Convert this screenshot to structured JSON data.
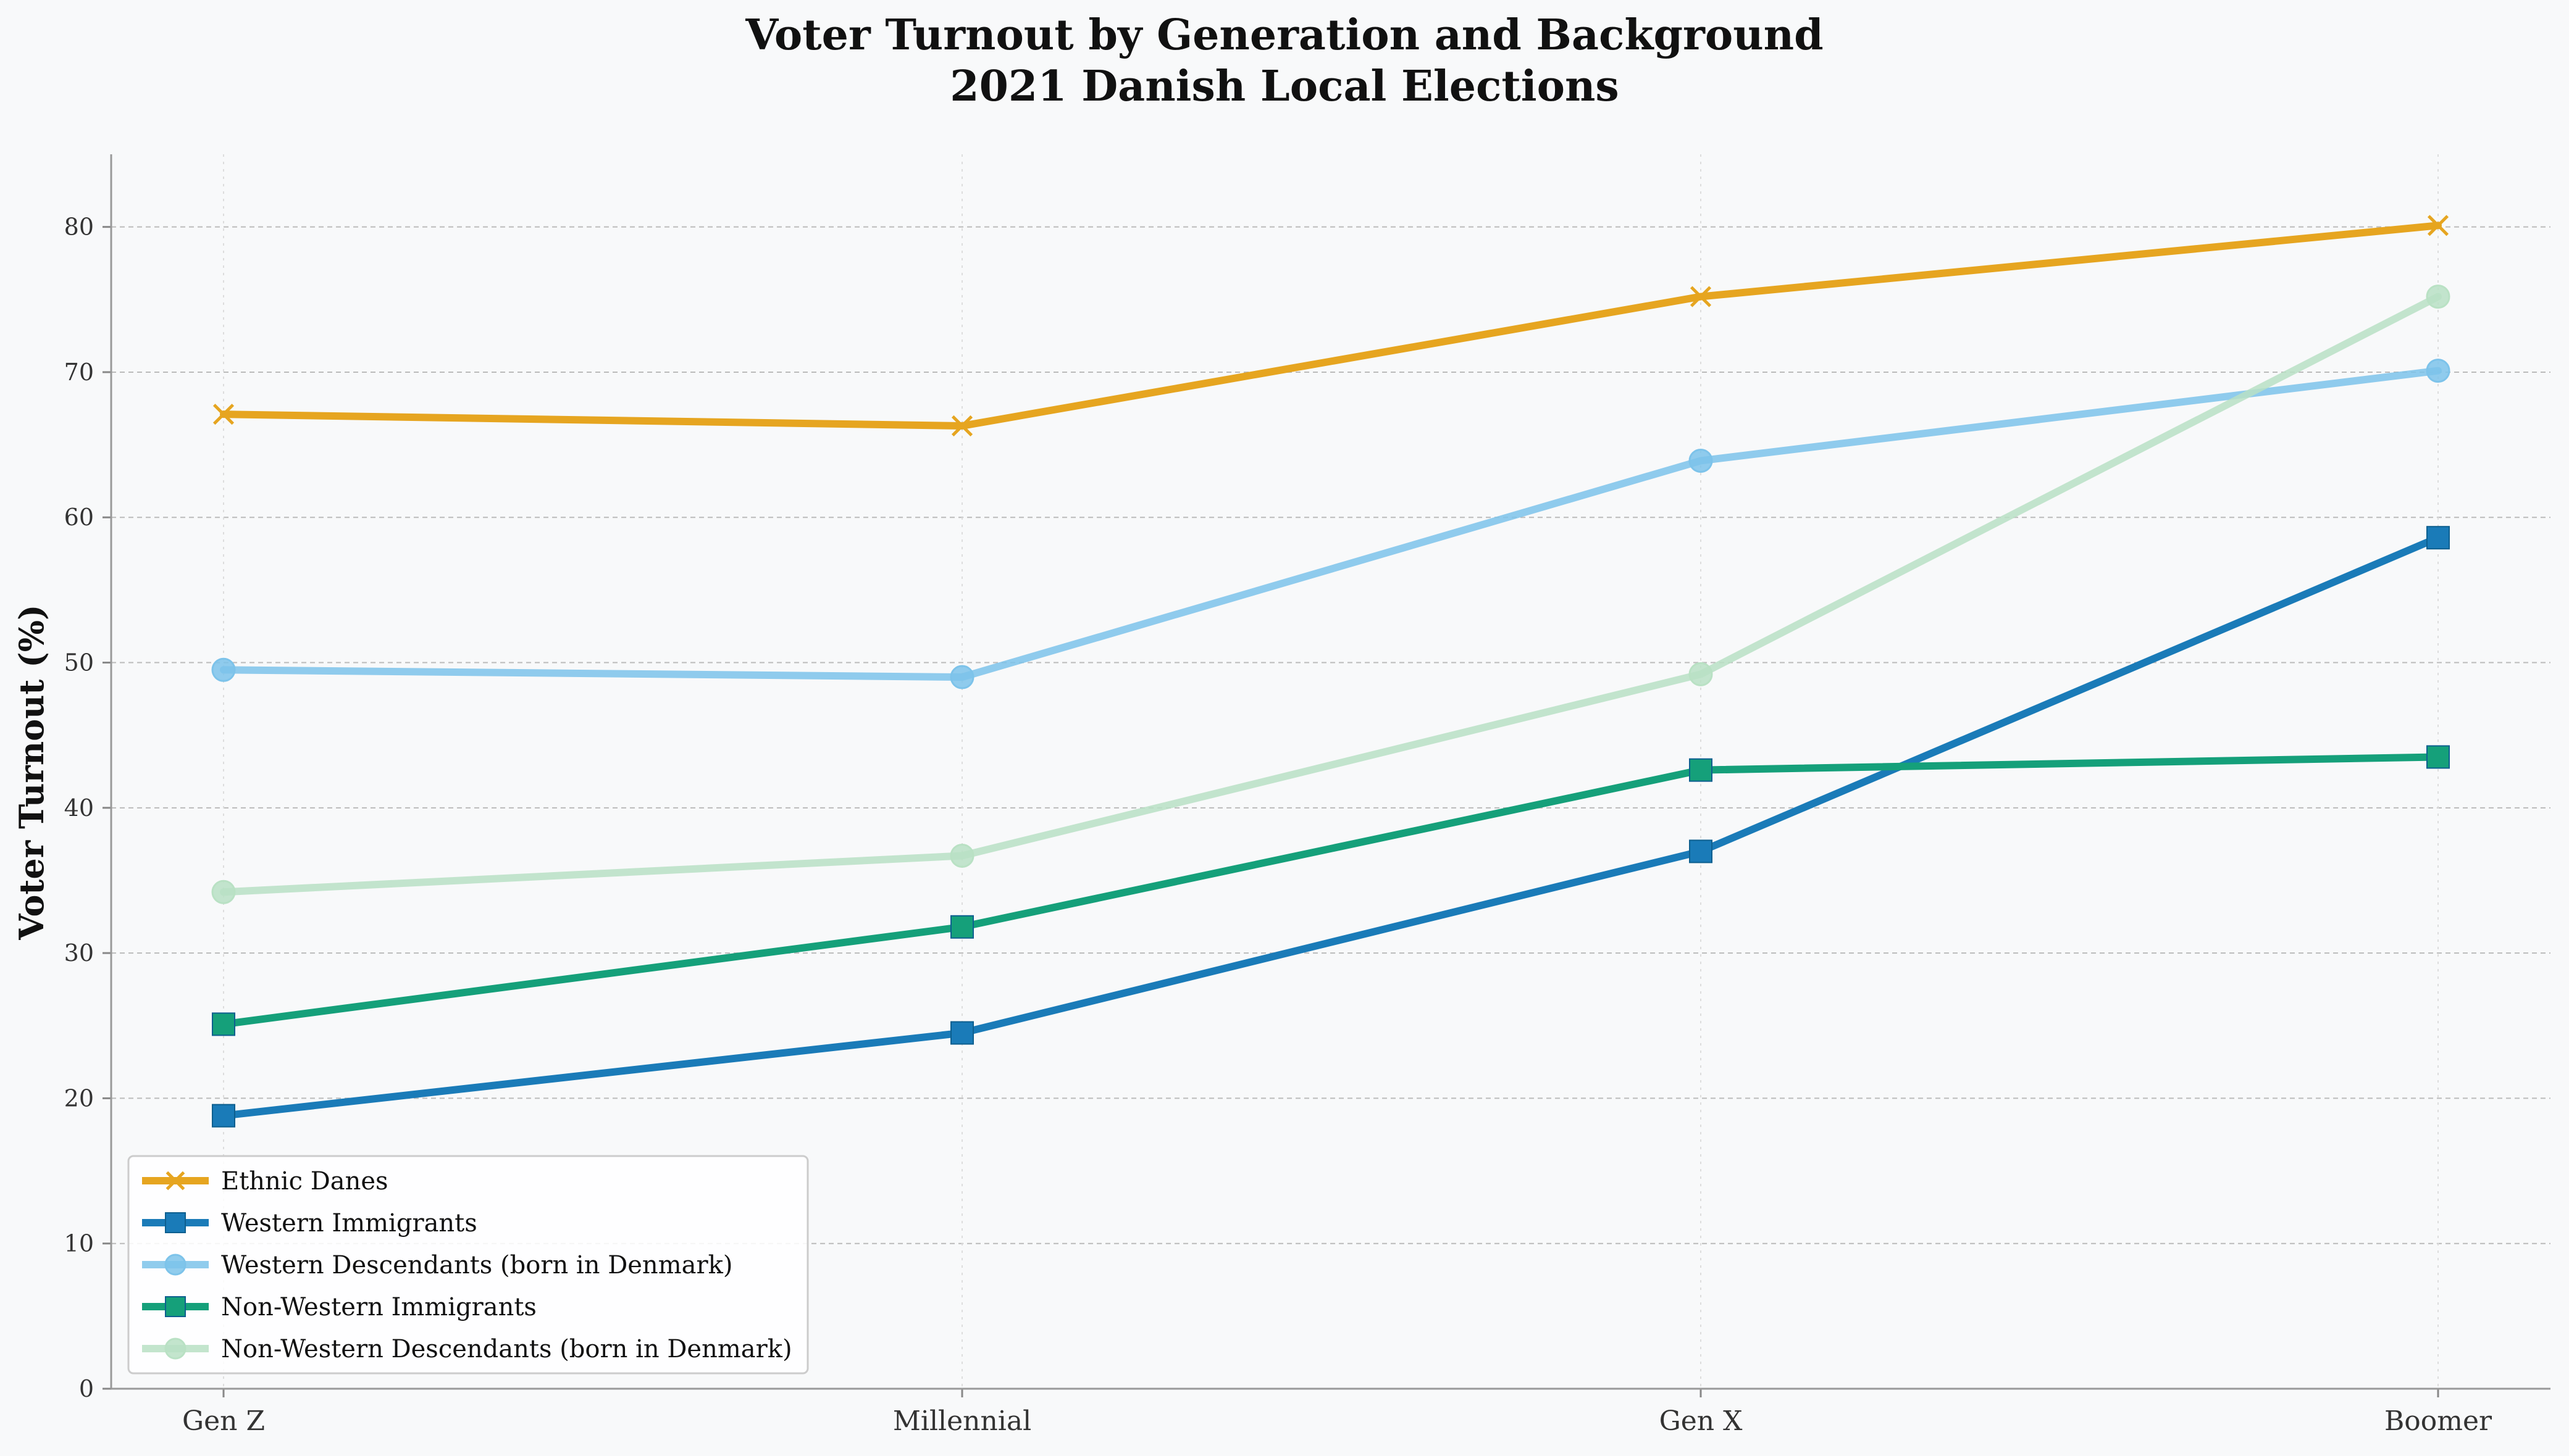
{
  "chart_data": {
    "type": "line",
    "title_line1": "Voter Turnout by Generation and Background",
    "title_line2": "2021 Danish Local Elections",
    "xlabel": "",
    "ylabel": "Voter Turnout (%)",
    "categories": [
      "Gen Z",
      "Millennial",
      "Gen X",
      "Boomer"
    ],
    "ylim": [
      0,
      85
    ],
    "yticks": [
      0,
      10,
      20,
      30,
      40,
      50,
      60,
      70,
      80
    ],
    "grid": true,
    "legend_position": "lower-left",
    "series": [
      {
        "name": "Ethnic Danes",
        "values": [
          67.1,
          66.3,
          75.2,
          80.1
        ],
        "color": "#E6A520",
        "marker": "x",
        "alpha": 1.0
      },
      {
        "name": "Western Immigrants",
        "values": [
          18.8,
          24.5,
          37.0,
          58.6
        ],
        "color": "#1A7BB8",
        "marker": "square",
        "alpha": 1.0
      },
      {
        "name": "Western Descendants (born in Denmark)",
        "values": [
          49.5,
          49.0,
          63.9,
          70.1
        ],
        "color": "#7DC3EA",
        "marker": "circle",
        "alpha": 0.85
      },
      {
        "name": "Non-Western Immigrants",
        "values": [
          25.1,
          31.8,
          42.6,
          43.5
        ],
        "color": "#15A07A",
        "marker": "square",
        "alpha": 1.0
      },
      {
        "name": "Non-Western Descendants (born in Denmark)",
        "values": [
          34.2,
          36.7,
          49.2,
          75.2
        ],
        "color": "#B9E1C4",
        "marker": "circle",
        "alpha": 0.85
      }
    ]
  }
}
